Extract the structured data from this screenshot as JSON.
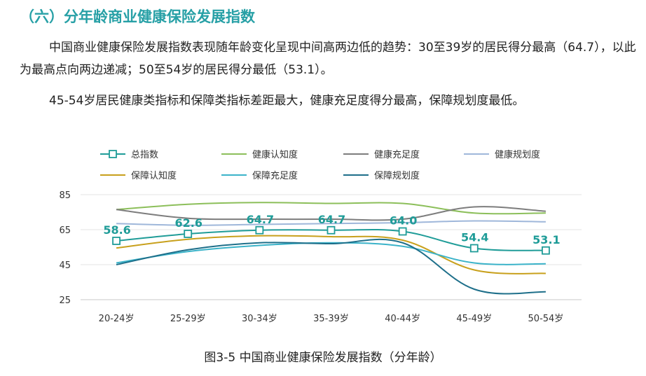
{
  "document": {
    "heading": "（六）分年龄商业健康保险发展指数",
    "paragraph1": "中国商业健康保险发展指数表现随年龄变化呈现中间高两边低的趋势：30至39岁的居民得分最高（64.7），以此为最高点向两边递减；50至54岁的居民得分最低（53.1）。",
    "paragraph2": "45-54岁居民健康类指标和保障类指标差距最大，健康充足度得分最高，保障规划度最低。",
    "caption": "图3-5 中国商业健康保险发展指数（分年龄）"
  },
  "chart_data": {
    "type": "line",
    "categories": [
      "20-24岁",
      "25-29岁",
      "30-34岁",
      "35-39岁",
      "40-44岁",
      "45-49岁",
      "50-54岁"
    ],
    "ylim": [
      25,
      85
    ],
    "yticks": [
      25,
      45,
      65,
      85
    ],
    "legend_position": "top",
    "series": [
      {
        "name": "总指数",
        "color": "#1f9c98",
        "marker": "square-open",
        "labels": true,
        "values": [
          58.6,
          62.6,
          64.7,
          64.7,
          64.0,
          54.4,
          53.1
        ],
        "value_labels": [
          "58.6",
          "62.6",
          "64.7",
          "64.7",
          "64.0",
          "54.4",
          "53.1"
        ]
      },
      {
        "name": "健康认知度",
        "color": "#8cbf5a",
        "values": [
          76.5,
          79.5,
          80.5,
          80.0,
          80.0,
          74.5,
          74.5
        ]
      },
      {
        "name": "健康充足度",
        "color": "#7d7d7d",
        "values": [
          76.5,
          71.5,
          71.0,
          71.0,
          71.0,
          78.0,
          75.5
        ]
      },
      {
        "name": "健康规划度",
        "color": "#9fb7da",
        "values": [
          68.5,
          67.5,
          68.0,
          68.5,
          69.0,
          70.0,
          69.5
        ]
      },
      {
        "name": "保障认知度",
        "color": "#c8a01c",
        "values": [
          54.5,
          59.5,
          61.5,
          61.0,
          59.0,
          42.0,
          40.0
        ]
      },
      {
        "name": "保障充足度",
        "color": "#3bb3c9",
        "values": [
          46.0,
          52.5,
          56.0,
          57.5,
          55.5,
          46.0,
          45.5
        ]
      },
      {
        "name": "保障规划度",
        "color": "#1e6f8a",
        "values": [
          45.0,
          53.5,
          57.5,
          57.0,
          57.5,
          31.0,
          29.5
        ]
      }
    ]
  }
}
